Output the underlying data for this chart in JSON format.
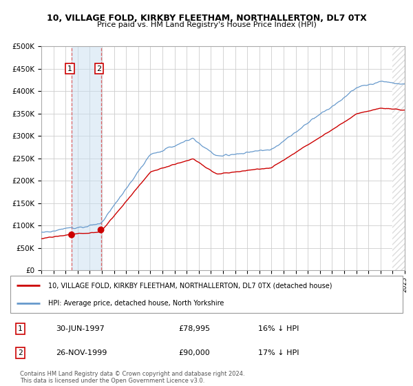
{
  "title": "10, VILLAGE FOLD, KIRKBY FLEETHAM, NORTHALLERTON, DL7 0TX",
  "subtitle": "Price paid vs. HM Land Registry's House Price Index (HPI)",
  "legend_line1": "10, VILLAGE FOLD, KIRKBY FLEETHAM, NORTHALLERTON, DL7 0TX (detached house)",
  "legend_line2": "HPI: Average price, detached house, North Yorkshire",
  "footer": "Contains HM Land Registry data © Crown copyright and database right 2024.\nThis data is licensed under the Open Government Licence v3.0.",
  "sale1_label": "1",
  "sale1_date": "30-JUN-1997",
  "sale1_price": "£78,995",
  "sale1_hpi": "16% ↓ HPI",
  "sale1_year": 1997.5,
  "sale1_value": 78995,
  "sale2_label": "2",
  "sale2_date": "26-NOV-1999",
  "sale2_price": "£90,000",
  "sale2_hpi": "17% ↓ HPI",
  "sale2_year": 1999.92,
  "sale2_value": 90000,
  "hpi_color": "#6699cc",
  "sale_color": "#cc0000",
  "marker_color": "#cc0000",
  "ylim_min": 0,
  "ylim_max": 500000,
  "yticks": [
    0,
    50000,
    100000,
    150000,
    200000,
    250000,
    300000,
    350000,
    400000,
    450000,
    500000
  ],
  "ytick_labels": [
    "£0",
    "£50K",
    "£100K",
    "£150K",
    "£200K",
    "£250K",
    "£300K",
    "£350K",
    "£400K",
    "£450K",
    "£500K"
  ],
  "grid_color": "#cccccc",
  "bg_color": "#e8eef4",
  "plot_bg_color": "#ffffff",
  "hatch_color": "#bbbbbb"
}
